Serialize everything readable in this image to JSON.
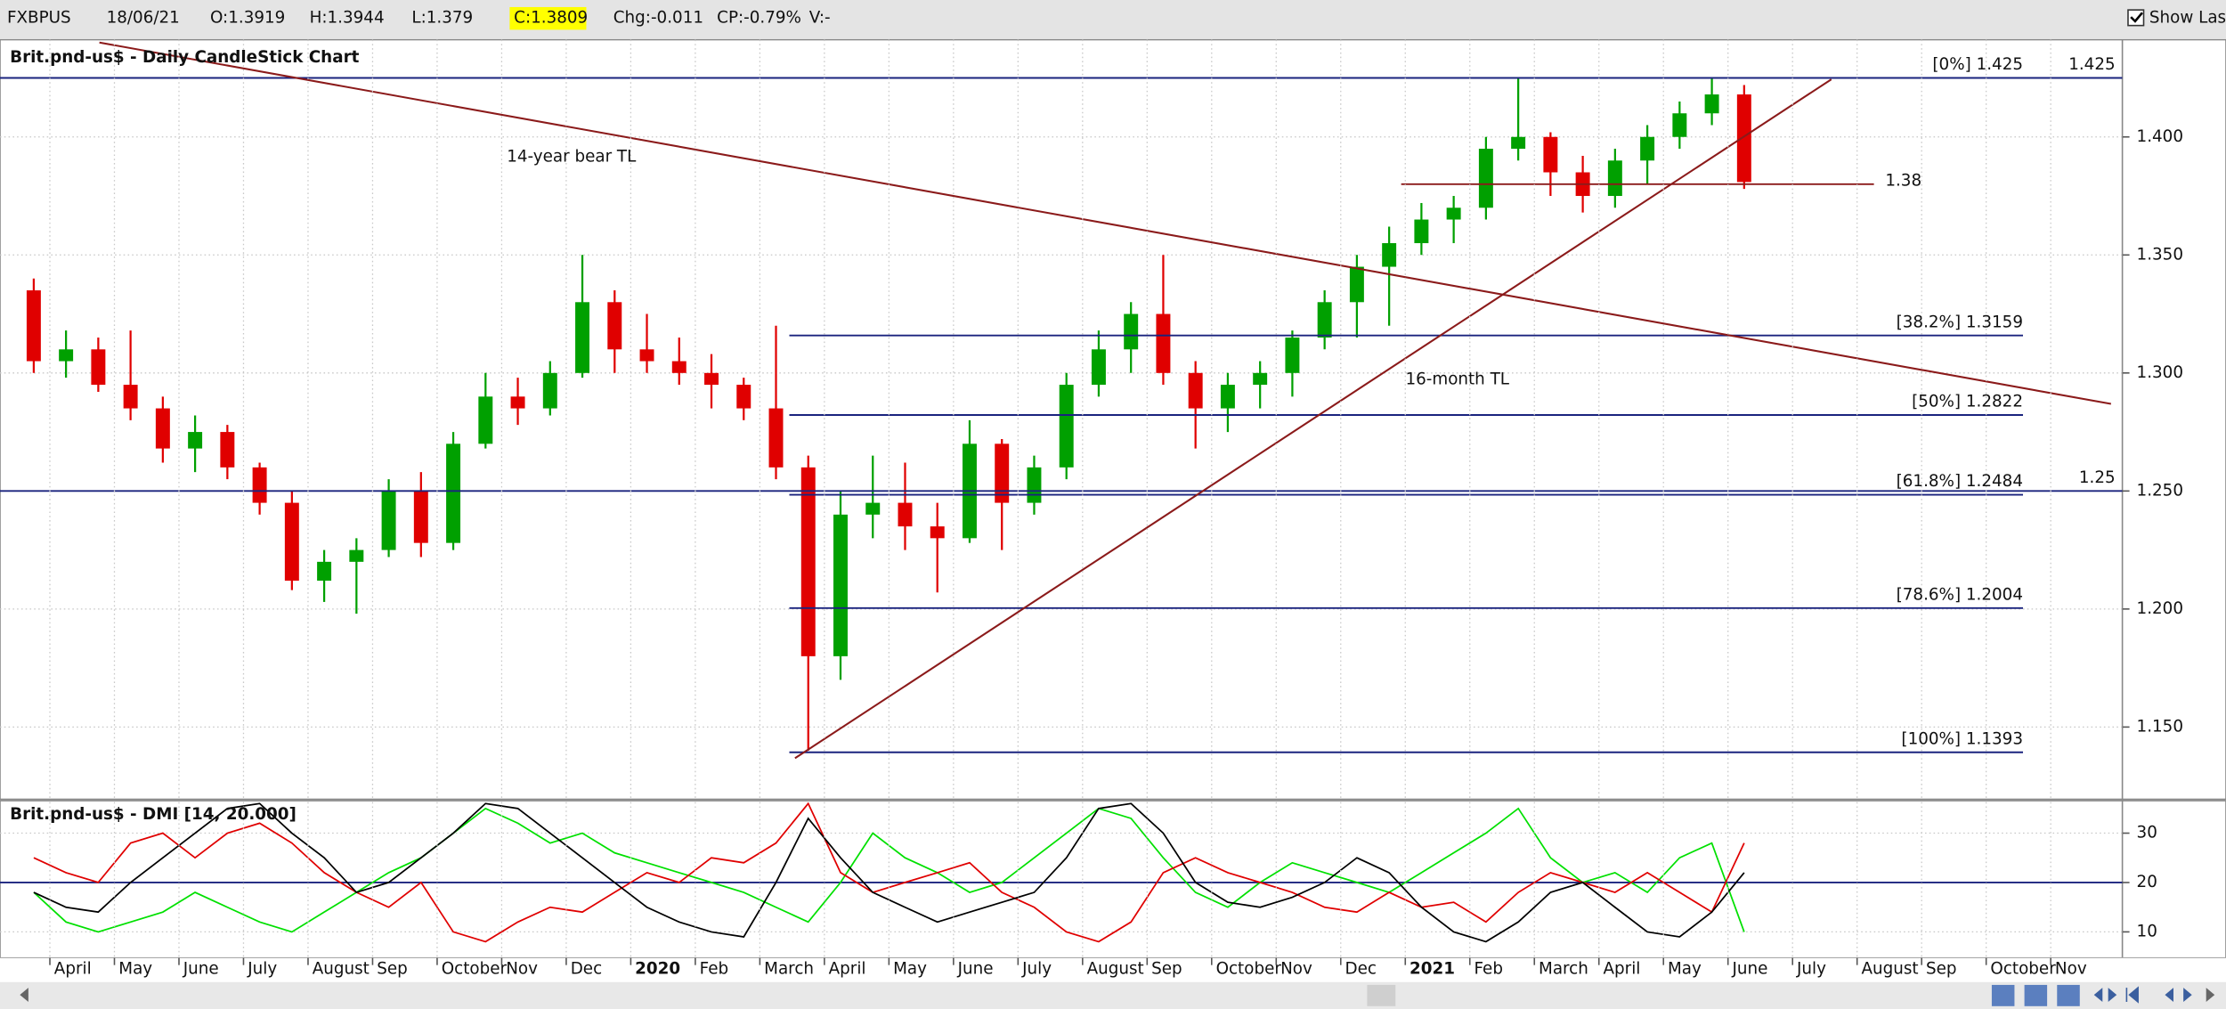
{
  "header": {
    "symbol": "FXBPUS",
    "date": "18/06/21",
    "open": "O:1.3919",
    "high": "H:1.3944",
    "low": "L:1.379",
    "close": "C:1.3809",
    "change": "Chg:-0.011",
    "change_pct": "CP:-0.79%",
    "volume": "V:-",
    "show_last": "Show Last"
  },
  "chart_data": [
    {
      "type": "candlestick",
      "title": "Brit.pnd-us$ - Daily CandleStick Chart",
      "up_color": "#00a000",
      "down_color": "#e00000",
      "open": [
        1.335,
        1.305,
        1.31,
        1.295,
        1.285,
        1.268,
        1.275,
        1.26,
        1.245,
        1.212,
        1.22,
        1.225,
        1.25,
        1.228,
        1.27,
        1.29,
        1.285,
        1.3,
        1.33,
        1.31,
        1.305,
        1.3,
        1.295,
        1.285,
        1.26,
        1.18,
        1.24,
        1.245,
        1.235,
        1.23,
        1.27,
        1.245,
        1.26,
        1.295,
        1.31,
        1.325,
        1.3,
        1.285,
        1.295,
        1.3,
        1.315,
        1.33,
        1.345,
        1.355,
        1.365,
        1.37,
        1.395,
        1.4,
        1.385,
        1.375,
        1.39,
        1.4,
        1.41,
        1.418,
        null,
        null,
        null,
        null,
        null,
        null,
        null,
        null,
        null,
        null,
        null
      ],
      "high": [
        1.34,
        1.318,
        1.315,
        1.318,
        1.29,
        1.282,
        1.278,
        1.262,
        1.25,
        1.225,
        1.23,
        1.255,
        1.258,
        1.275,
        1.3,
        1.298,
        1.305,
        1.35,
        1.335,
        1.325,
        1.315,
        1.308,
        1.298,
        1.32,
        1.265,
        1.25,
        1.265,
        1.262,
        1.245,
        1.28,
        1.272,
        1.265,
        1.3,
        1.318,
        1.33,
        1.35,
        1.305,
        1.3,
        1.305,
        1.318,
        1.335,
        1.35,
        1.362,
        1.372,
        1.375,
        1.4,
        1.425,
        1.402,
        1.392,
        1.395,
        1.405,
        1.415,
        1.425,
        1.422,
        null,
        null,
        null,
        null,
        null,
        null,
        null,
        null,
        null,
        null,
        null
      ],
      "low": [
        1.3,
        1.298,
        1.292,
        1.28,
        1.262,
        1.258,
        1.255,
        1.24,
        1.208,
        1.203,
        1.198,
        1.222,
        1.222,
        1.225,
        1.268,
        1.278,
        1.282,
        1.298,
        1.3,
        1.3,
        1.295,
        1.285,
        1.28,
        1.255,
        1.14,
        1.17,
        1.23,
        1.225,
        1.207,
        1.228,
        1.225,
        1.24,
        1.255,
        1.29,
        1.3,
        1.295,
        1.268,
        1.275,
        1.285,
        1.29,
        1.31,
        1.315,
        1.32,
        1.35,
        1.355,
        1.365,
        1.39,
        1.375,
        1.368,
        1.37,
        1.38,
        1.395,
        1.405,
        1.378,
        null,
        null,
        null,
        null,
        null,
        null,
        null,
        null,
        null,
        null,
        null
      ],
      "close": [
        1.305,
        1.31,
        1.295,
        1.285,
        1.268,
        1.275,
        1.26,
        1.245,
        1.212,
        1.22,
        1.225,
        1.25,
        1.228,
        1.27,
        1.29,
        1.285,
        1.3,
        1.33,
        1.31,
        1.305,
        1.3,
        1.295,
        1.285,
        1.26,
        1.18,
        1.24,
        1.245,
        1.235,
        1.23,
        1.27,
        1.245,
        1.26,
        1.295,
        1.31,
        1.325,
        1.3,
        1.285,
        1.295,
        1.3,
        1.315,
        1.33,
        1.345,
        1.355,
        1.365,
        1.37,
        1.395,
        1.4,
        1.385,
        1.375,
        1.39,
        1.4,
        1.41,
        1.418,
        1.3809,
        null,
        null,
        null,
        null,
        null,
        null,
        null,
        null,
        null,
        null,
        null
      ],
      "ylim": [
        1.12,
        1.44
      ],
      "yticks": [
        {
          "value": 1.15,
          "label": "1.150"
        },
        {
          "value": 1.2,
          "label": "1.200"
        },
        {
          "value": 1.25,
          "label": "1.250"
        },
        {
          "value": 1.3,
          "label": "1.300"
        },
        {
          "value": 1.35,
          "label": "1.350"
        },
        {
          "value": 1.4,
          "label": "1.400"
        }
      ],
      "grid": true,
      "price_lines": [
        {
          "value": 1.425,
          "color": "#1a237e"
        },
        {
          "value": 1.25,
          "color": "#1a237e"
        }
      ],
      "fib_levels": [
        {
          "label": "[0%] 1.425",
          "value": 1.425
        },
        {
          "label": "[38.2%] 1.3159",
          "value": 1.3159
        },
        {
          "label": "[50%] 1.2822",
          "value": 1.2822
        },
        {
          "label": "[61.8%] 1.2484",
          "value": 1.2484
        },
        {
          "label": "[78.6%] 1.2004",
          "value": 1.2004
        },
        {
          "label": "[100%] 1.1393",
          "value": 1.1393
        }
      ],
      "fib_color": "#1a237e",
      "support": {
        "value": 1.38,
        "color": "#8b1a1a",
        "label_color": "#1a237e"
      },
      "trendlines": [
        {
          "label": "14-year bear TL",
          "start": 1.44,
          "end": 1.2869,
          "color": "#8b1a1a",
          "label_color": "#8b1a1a"
        },
        {
          "label": "16-month TL",
          "start": 1.1368,
          "end": 1.4244,
          "color": "#8b1a1a",
          "label_color": "#1a237e"
        }
      ]
    },
    {
      "type": "line",
      "title": "Brit.pnd-us$ - DMI [14, 20.000]",
      "categories": [
        null,
        "April",
        null,
        "May",
        null,
        "June",
        null,
        "July",
        null,
        "August",
        null,
        "Sep",
        null,
        "October",
        null,
        "Nov",
        null,
        "Dec",
        null,
        "2020",
        null,
        "Feb",
        null,
        "March",
        null,
        "April",
        null,
        "May",
        null,
        "June",
        null,
        "July",
        null,
        "August",
        null,
        "Sep",
        null,
        "October",
        null,
        "Nov",
        null,
        "Dec",
        null,
        "2021",
        null,
        "Feb",
        null,
        "March",
        null,
        "April",
        null,
        "May",
        null,
        "June",
        null,
        "July",
        null,
        "August",
        null,
        "Sep",
        null,
        "October",
        null,
        "Nov",
        null
      ],
      "series": [
        {
          "color": "#00e000",
          "values": [
            18,
            12,
            10,
            12,
            14,
            18,
            15,
            12,
            10,
            14,
            18,
            22,
            25,
            30,
            35,
            32,
            28,
            30,
            26,
            24,
            22,
            20,
            18,
            15,
            12,
            20,
            30,
            25,
            22,
            18,
            20,
            25,
            30,
            35,
            33,
            25,
            18,
            15,
            20,
            24,
            22,
            20,
            18,
            22,
            26,
            30,
            35,
            25,
            20,
            22,
            18,
            25,
            28,
            10,
            null,
            null,
            null,
            null,
            null,
            null,
            null,
            null,
            null,
            null,
            null
          ]
        },
        {
          "color": "#e00000",
          "values": [
            25,
            22,
            20,
            28,
            30,
            25,
            30,
            32,
            28,
            22,
            18,
            15,
            20,
            10,
            8,
            12,
            15,
            14,
            18,
            22,
            20,
            25,
            24,
            28,
            36,
            22,
            18,
            20,
            22,
            24,
            18,
            15,
            10,
            8,
            12,
            22,
            25,
            22,
            20,
            18,
            15,
            14,
            18,
            15,
            16,
            12,
            18,
            22,
            20,
            18,
            22,
            18,
            14,
            28,
            null,
            null,
            null,
            null,
            null,
            null,
            null,
            null,
            null,
            null,
            null
          ]
        },
        {
          "color": "#000000",
          "values": [
            18,
            15,
            14,
            20,
            25,
            30,
            35,
            36,
            30,
            25,
            18,
            20,
            25,
            30,
            36,
            35,
            30,
            25,
            20,
            15,
            12,
            10,
            9,
            20,
            33,
            25,
            18,
            15,
            12,
            14,
            16,
            18,
            25,
            35,
            36,
            30,
            20,
            16,
            15,
            17,
            20,
            25,
            22,
            15,
            10,
            8,
            12,
            18,
            20,
            15,
            10,
            9,
            14,
            22,
            null,
            null,
            null,
            null,
            null,
            null,
            null,
            null,
            null,
            null,
            null
          ]
        }
      ],
      "threshold": {
        "value": 20,
        "color": "#1a237e"
      },
      "ylim": [
        5,
        36
      ],
      "yticks": [
        10,
        20,
        30
      ],
      "grid": true
    }
  ]
}
